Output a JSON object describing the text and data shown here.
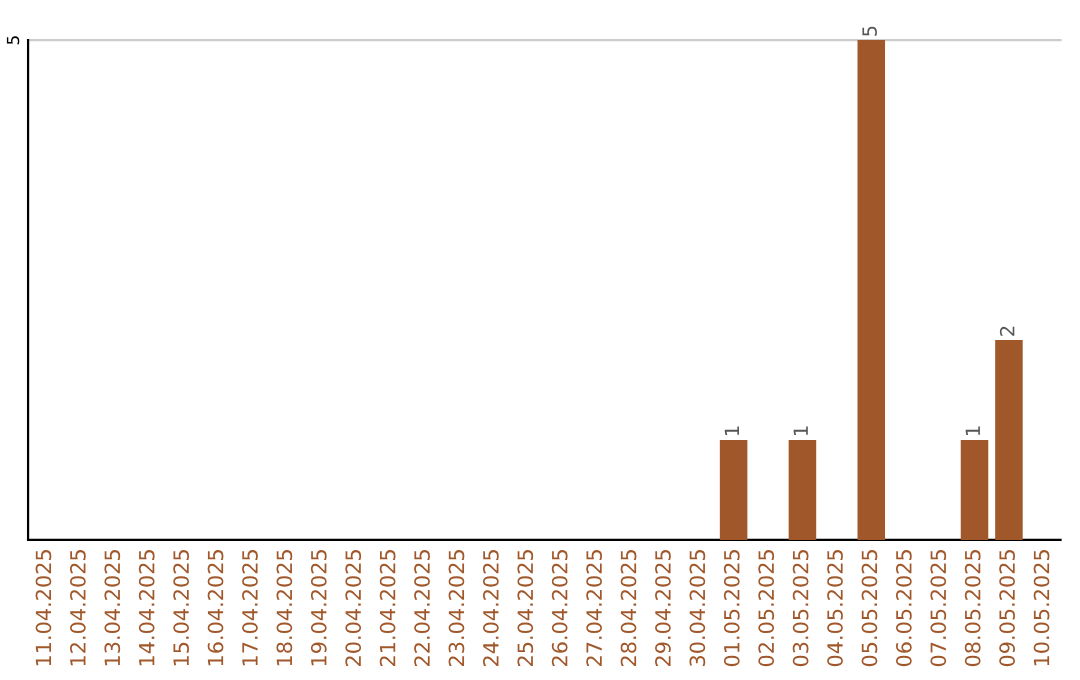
{
  "chart_data": {
    "type": "bar",
    "categories": [
      "11.04.2025",
      "12.04.2025",
      "13.04.2025",
      "14.04.2025",
      "15.04.2025",
      "16.04.2025",
      "17.04.2025",
      "18.04.2025",
      "19.04.2025",
      "20.04.2025",
      "21.04.2025",
      "22.04.2025",
      "23.04.2025",
      "24.04.2025",
      "25.04.2025",
      "26.04.2025",
      "27.04.2025",
      "28.04.2025",
      "29.04.2025",
      "30.04.2025",
      "01.05.2025",
      "02.05.2025",
      "03.05.2025",
      "04.05.2025",
      "05.05.2025",
      "06.05.2025",
      "07.05.2025",
      "08.05.2025",
      "09.05.2025",
      "10.05.2025"
    ],
    "values": [
      null,
      null,
      null,
      null,
      null,
      null,
      null,
      null,
      null,
      null,
      null,
      null,
      null,
      null,
      null,
      null,
      null,
      null,
      null,
      null,
      1,
      null,
      1,
      null,
      5,
      null,
      null,
      1,
      2,
      null
    ],
    "value_labels": [
      null,
      null,
      null,
      null,
      null,
      null,
      null,
      null,
      null,
      null,
      null,
      null,
      null,
      null,
      null,
      null,
      null,
      null,
      null,
      null,
      "1",
      null,
      "1",
      null,
      "5",
      null,
      null,
      "1",
      "2",
      null
    ],
    "ylim": [
      0,
      5
    ],
    "ref_lines": [
      {
        "axis": "y",
        "value": 5,
        "label": "5",
        "color": "#cccccc"
      }
    ],
    "color": "#a0572a",
    "legend": false
  }
}
